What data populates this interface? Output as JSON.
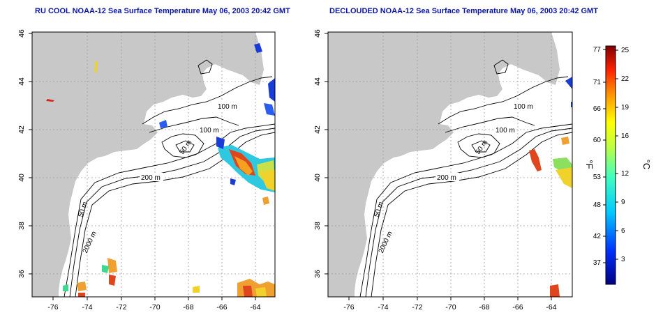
{
  "titles": {
    "left": "RU COOL NOAA-12 Sea Surface Temperature May 06, 2003 20:42 GMT",
    "right": "DECLOUDED NOAA-12 Sea Surface Temperature May 06, 2003 20:42 GMT"
  },
  "map": {
    "x_ticks": [
      "-76",
      "-74",
      "-72",
      "-70",
      "-68",
      "-66",
      "-64"
    ],
    "y_ticks": [
      "46",
      "44",
      "42",
      "40",
      "38",
      "36"
    ],
    "lon_range": [
      -77,
      -63
    ],
    "lat_range": [
      35,
      46
    ],
    "grid": "dotted"
  },
  "contour_labels": {
    "left": [
      "100 m",
      "100 m",
      "50 m",
      "200 m",
      "50 m",
      "2000 m"
    ],
    "right": [
      "100 m",
      "100 m",
      "50 m",
      "200 m",
      "50 m",
      "2000 m"
    ]
  },
  "colorbar": {
    "f_label": "°F",
    "c_label": "°C",
    "f_ticks": [
      "77",
      "71",
      "66",
      "60",
      "53",
      "48",
      "42",
      "37"
    ],
    "c_ticks": [
      "25",
      "22",
      "19",
      "16",
      "12",
      "9",
      "6",
      "3"
    ]
  },
  "colors": {
    "land": "#c8c8c8",
    "title": "#0a16a6",
    "warm": "#e0461e",
    "cool": "#1a3cd6"
  }
}
